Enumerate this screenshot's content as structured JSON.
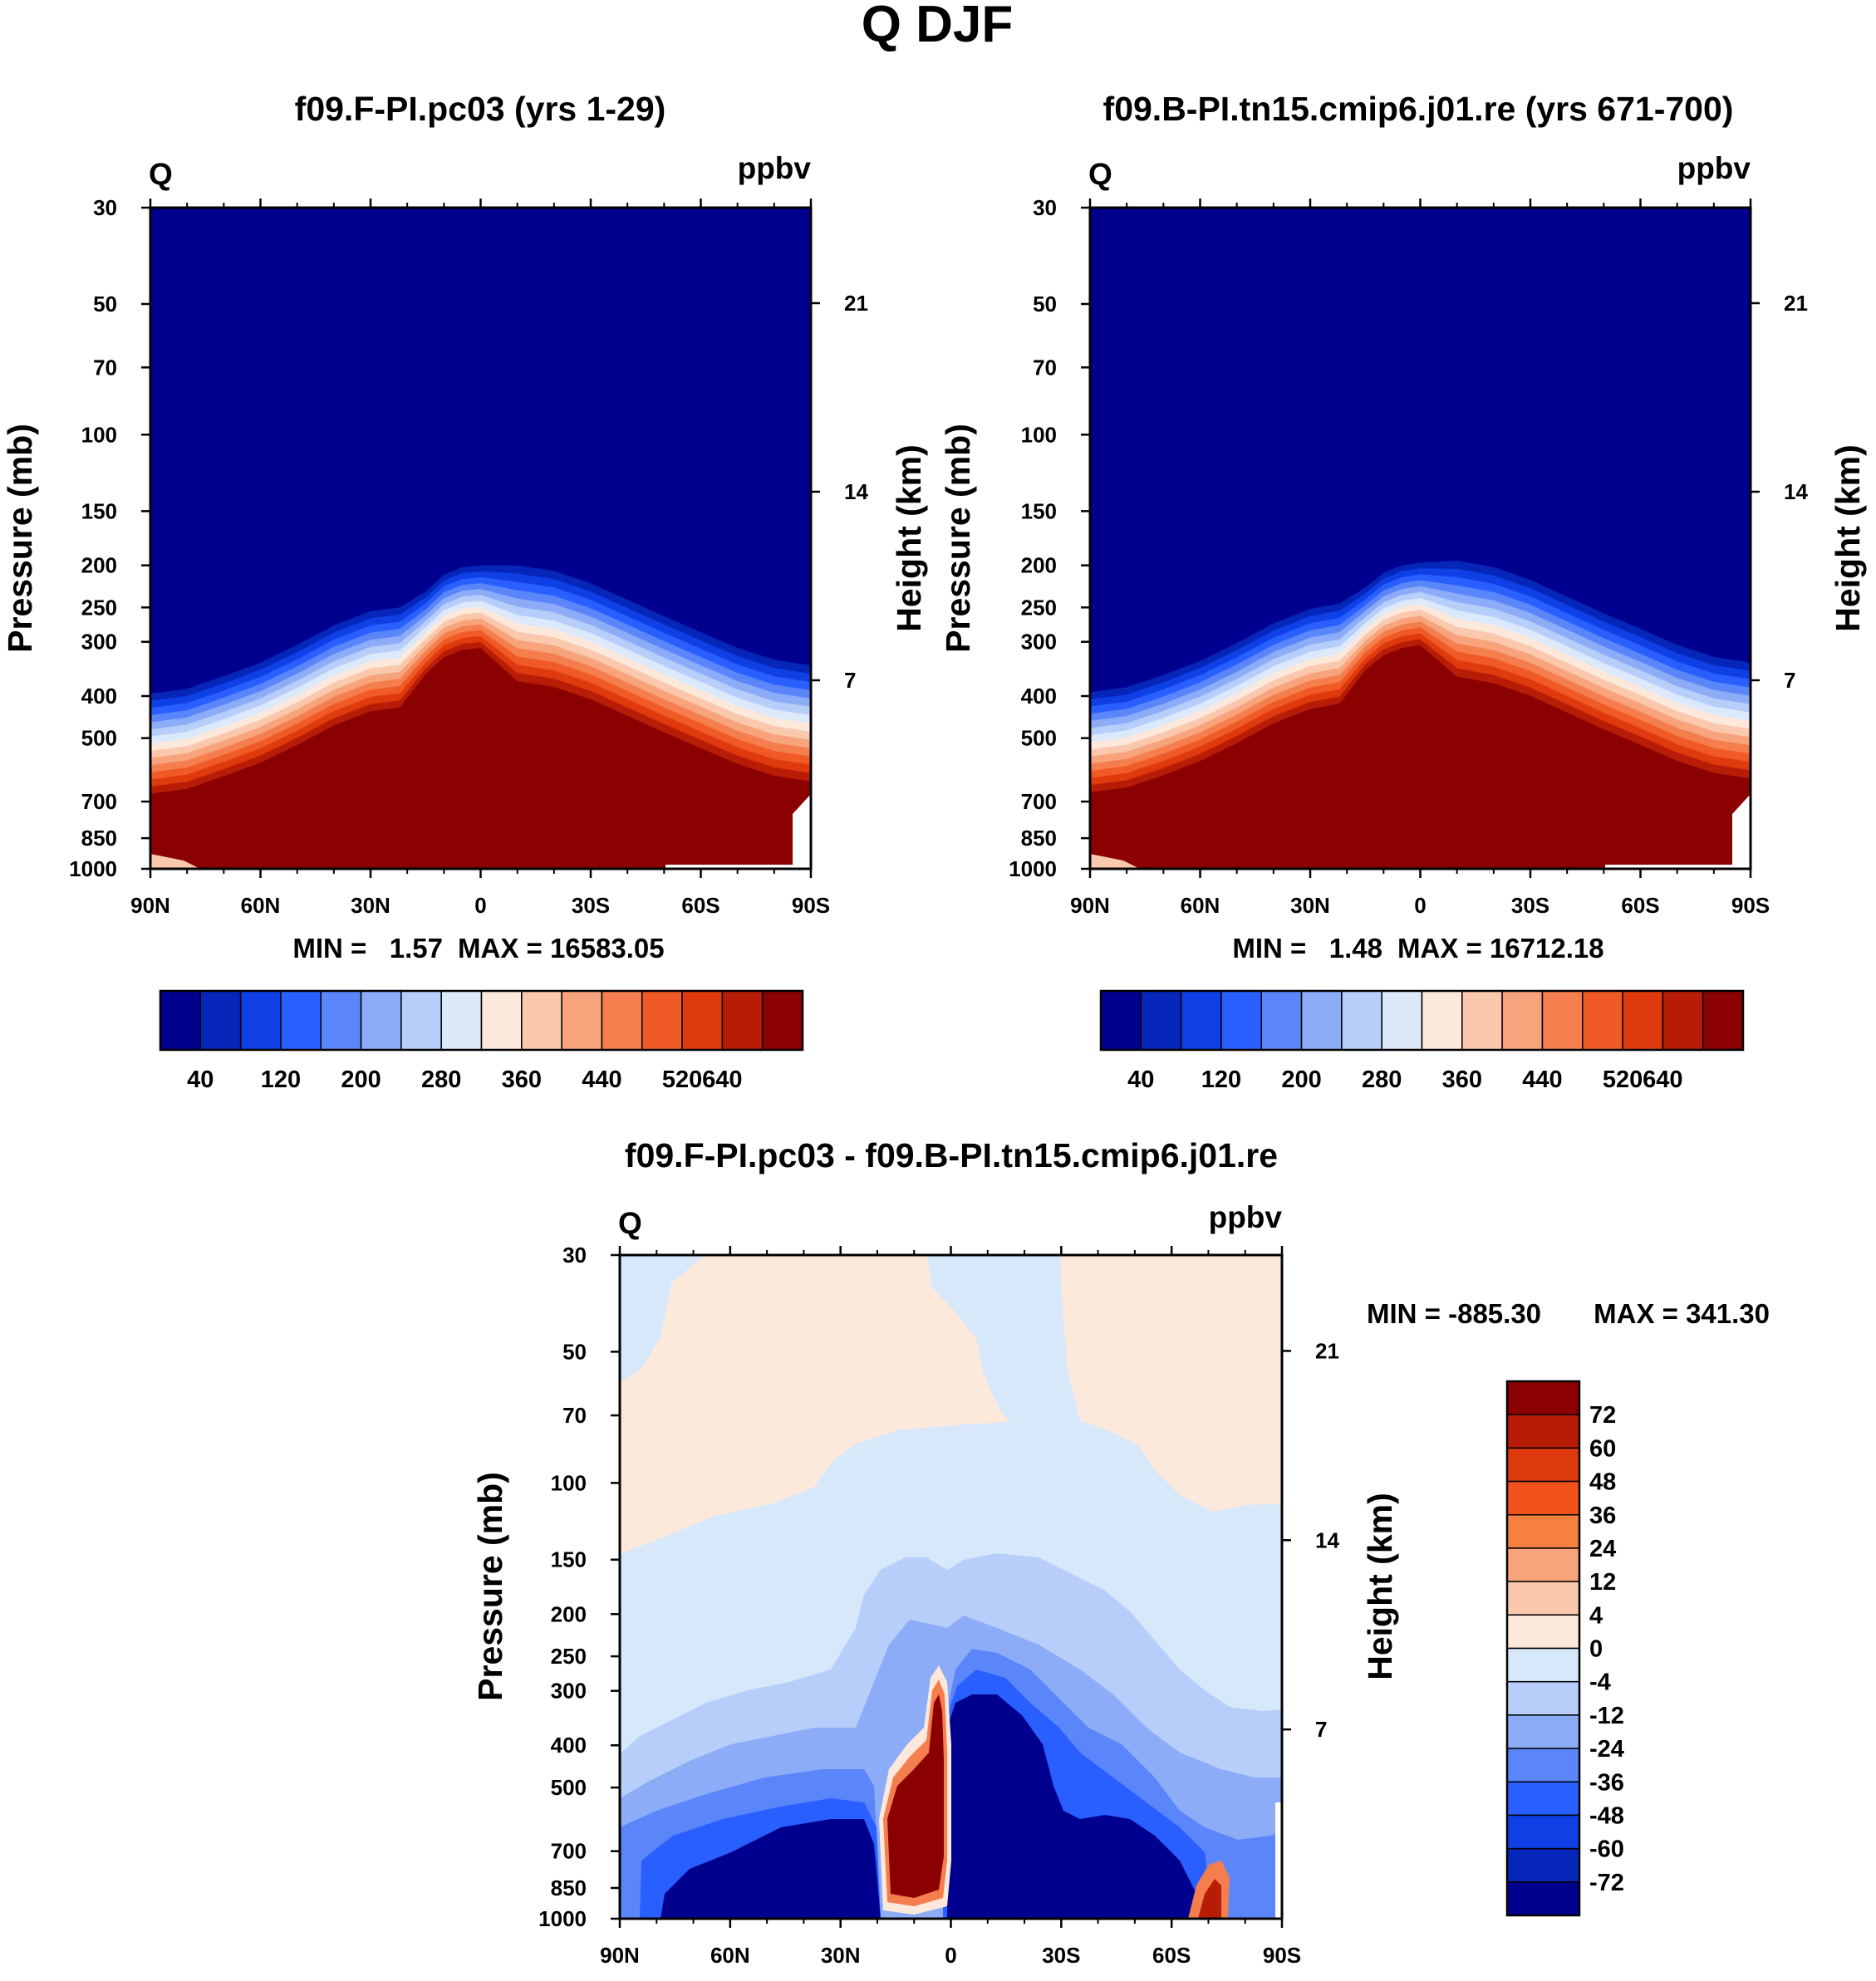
{
  "page_title": "Q DJF",
  "chart_data": [
    {
      "type": "contour",
      "title": "f09.F-PI.pc03 (yrs 1-29)",
      "variable": "Q",
      "units": "ppbv",
      "ylabel": "Pressure (mb)",
      "ylabel_right": "Height (km)",
      "x_ticks": [
        "90N",
        "60N",
        "30N",
        "0",
        "30S",
        "60S",
        "90S"
      ],
      "x_values": [
        90,
        60,
        30,
        0,
        -30,
        -60,
        -90
      ],
      "y_ticks": [
        "30",
        "50",
        "70",
        "100",
        "150",
        "200",
        "250",
        "300",
        "400",
        "500",
        "700",
        "850",
        "1000"
      ],
      "y_values": [
        30,
        50,
        70,
        100,
        150,
        200,
        250,
        300,
        400,
        500,
        700,
        850,
        1000
      ],
      "ylim": [
        1000,
        30
      ],
      "height_ticks": [
        "21",
        "14",
        "7"
      ],
      "height_values": [
        21,
        14,
        7
      ],
      "min_label": "MIN =   1.57",
      "max_label": "MAX = 16583.05",
      "min": 1.57,
      "max": 16583.05,
      "levels": [
        40,
        80,
        120,
        160,
        200,
        240,
        280,
        320,
        360,
        400,
        440,
        480,
        520,
        560,
        600,
        640
      ],
      "top_of_moist_layer_mb": [
        [
          90,
          395
        ],
        [
          80,
          385
        ],
        [
          70,
          360
        ],
        [
          60,
          335
        ],
        [
          50,
          305
        ],
        [
          40,
          275
        ],
        [
          30,
          255
        ],
        [
          22,
          250
        ],
        [
          15,
          230
        ],
        [
          10,
          210
        ],
        [
          5,
          202
        ],
        [
          0,
          200
        ],
        [
          -10,
          200
        ],
        [
          -20,
          206
        ],
        [
          -30,
          220
        ],
        [
          -40,
          240
        ],
        [
          -50,
          262
        ],
        [
          -60,
          285
        ],
        [
          -70,
          310
        ],
        [
          -80,
          330
        ],
        [
          -90,
          340
        ]
      ]
    },
    {
      "type": "contour",
      "title": "f09.B-PI.tn15.cmip6.j01.re (yrs 671-700)",
      "variable": "Q",
      "units": "ppbv",
      "ylabel": "Pressure (mb)",
      "ylabel_right": "Height (km)",
      "x_ticks": [
        "90N",
        "60N",
        "30N",
        "0",
        "30S",
        "60S",
        "90S"
      ],
      "x_values": [
        90,
        60,
        30,
        0,
        -30,
        -60,
        -90
      ],
      "y_ticks": [
        "30",
        "50",
        "70",
        "100",
        "150",
        "200",
        "250",
        "300",
        "400",
        "500",
        "700",
        "850",
        "1000"
      ],
      "y_values": [
        30,
        50,
        70,
        100,
        150,
        200,
        250,
        300,
        400,
        500,
        700,
        850,
        1000
      ],
      "ylim": [
        1000,
        30
      ],
      "height_ticks": [
        "21",
        "14",
        "7"
      ],
      "height_values": [
        21,
        14,
        7
      ],
      "min_label": "MIN =   1.48",
      "max_label": "MAX = 16712.18",
      "min": 1.48,
      "max": 16712.18,
      "levels": [
        40,
        80,
        120,
        160,
        200,
        240,
        280,
        320,
        360,
        400,
        440,
        480,
        520,
        560,
        600,
        640
      ],
      "top_of_moist_layer_mb": [
        [
          90,
          392
        ],
        [
          80,
          382
        ],
        [
          70,
          358
        ],
        [
          60,
          332
        ],
        [
          50,
          302
        ],
        [
          40,
          272
        ],
        [
          30,
          252
        ],
        [
          22,
          245
        ],
        [
          15,
          225
        ],
        [
          10,
          208
        ],
        [
          5,
          200
        ],
        [
          0,
          197
        ],
        [
          -10,
          195
        ],
        [
          -20,
          202
        ],
        [
          -30,
          216
        ],
        [
          -40,
          236
        ],
        [
          -50,
          258
        ],
        [
          -60,
          280
        ],
        [
          -70,
          305
        ],
        [
          -80,
          325
        ],
        [
          -90,
          335
        ]
      ]
    },
    {
      "type": "contour",
      "title": "f09.F-PI.pc03 - f09.B-PI.tn15.cmip6.j01.re",
      "variable": "Q",
      "units": "ppbv",
      "ylabel": "Pressure (mb)",
      "ylabel_right": "Height (km)",
      "x_ticks": [
        "90N",
        "60N",
        "30N",
        "0",
        "30S",
        "60S",
        "90S"
      ],
      "x_values": [
        90,
        60,
        30,
        0,
        -30,
        -60,
        -90
      ],
      "y_ticks": [
        "30",
        "50",
        "70",
        "100",
        "150",
        "200",
        "250",
        "300",
        "400",
        "500",
        "700",
        "850",
        "1000"
      ],
      "y_values": [
        30,
        50,
        70,
        100,
        150,
        200,
        250,
        300,
        400,
        500,
        700,
        850,
        1000
      ],
      "ylim": [
        1000,
        30
      ],
      "height_ticks": [
        "21",
        "14",
        "7"
      ],
      "height_values": [
        21,
        14,
        7
      ],
      "min_label": "MIN = -885.30",
      "max_label": "MAX = 341.30",
      "min": -885.3,
      "max": 341.3,
      "levels": [
        -72,
        -60,
        -48,
        -36,
        -24,
        -12,
        -4,
        0,
        4,
        12,
        24,
        36,
        48,
        60,
        72
      ]
    }
  ],
  "colorbar_top": {
    "labels": [
      "40",
      "120",
      "200",
      "280",
      "360",
      "440",
      "520",
      "640"
    ],
    "colors": [
      "#00008f",
      "#0526b8",
      "#0f40e6",
      "#2a5fff",
      "#5a86fa",
      "#8cacf7",
      "#b7cdfa",
      "#dce9fb",
      "#fde9dc",
      "#f9c8ad",
      "#f7a47c",
      "#f47e4e",
      "#ef5a26",
      "#df3a0e",
      "#b71c06",
      "#8b0000"
    ]
  },
  "colorbar_bottom": {
    "labels": [
      "72",
      "60",
      "48",
      "36",
      "24",
      "12",
      "4",
      "0",
      "-4",
      "-12",
      "-24",
      "-36",
      "-48",
      "-60",
      "-72"
    ],
    "colors": [
      "#8b0000",
      "#b71c06",
      "#df3a0e",
      "#f3521c",
      "#f6803f",
      "#f7a47c",
      "#f9c8ad",
      "#fde9dc",
      "#d7e8fb",
      "#b7cdfa",
      "#8cacf7",
      "#5a86fa",
      "#2a5fff",
      "#0f40e6",
      "#0526b8",
      "#00008f"
    ]
  }
}
